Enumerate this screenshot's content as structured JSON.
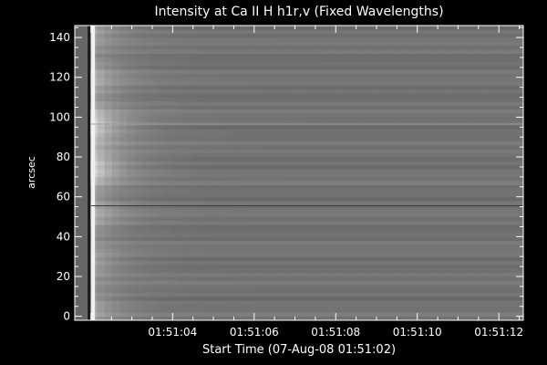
{
  "chart_data": {
    "type": "heatmap",
    "title": "Intensity at Ca II H h1r,v (Fixed Wavelengths)",
    "xlabel": "Start Time (07-Aug-08 01:51:02)",
    "ylabel": "arcsec",
    "xticks": [
      {
        "t": 2,
        "label": "01:51:04"
      },
      {
        "t": 4,
        "label": "01:51:06"
      },
      {
        "t": 6,
        "label": "01:51:08"
      },
      {
        "t": 8,
        "label": "01:51:10"
      },
      {
        "t": 10,
        "label": "01:51:12"
      }
    ],
    "xlim": [
      -0.4,
      10.6
    ],
    "yticks": [
      0,
      20,
      40,
      60,
      80,
      100,
      120,
      140
    ],
    "ylim": [
      -2,
      146
    ],
    "colormap": "grayscale",
    "background_intensity": 0.45,
    "bright_band": {
      "t_start": 0.0,
      "t_end": 1.5,
      "peak_intensity": 0.95,
      "brightest_y_range": [
        70,
        100
      ]
    },
    "dark_column_t": -0.05,
    "bright_column_t": 0.05,
    "horizontal_features": [
      {
        "y": 96.5,
        "kind": "bright_line"
      },
      {
        "y": 55.5,
        "kind": "dark_line"
      }
    ]
  },
  "colors": {
    "background": "#000000",
    "frame": "#ffffff",
    "text": "#ffffff",
    "plot_base": "#737373"
  }
}
